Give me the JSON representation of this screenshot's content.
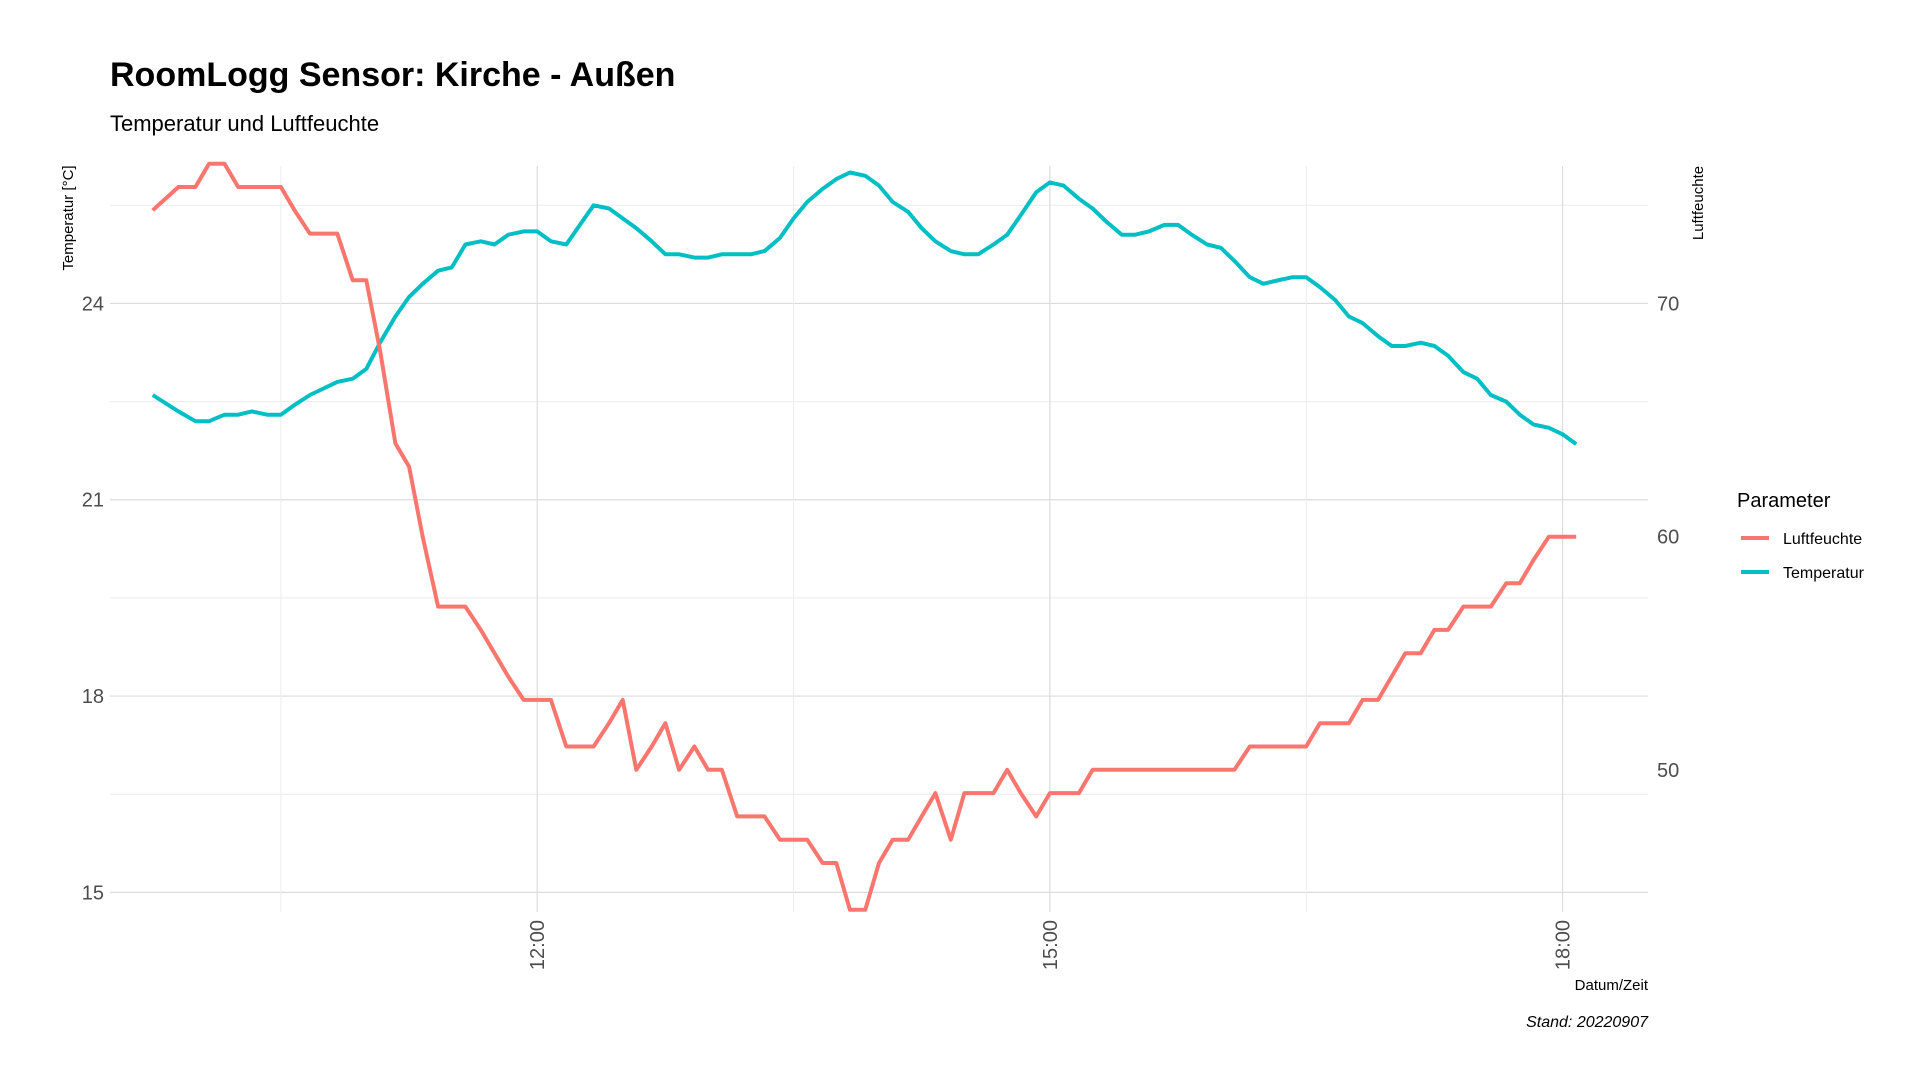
{
  "chart_data": {
    "type": "line",
    "title": "RoomLogg Sensor: Kirche - Außen",
    "subtitle": "Temperatur und Luftfeuchte",
    "xlabel": "Datum/Zeit",
    "ylabel_left": "Temperatur [°C]",
    "ylabel_right": "Luftfeuchte",
    "caption": "Stand: 20220907",
    "x_unit": "hours",
    "x_range": [
      9.5,
      18.5
    ],
    "x_ticks": [
      12,
      15,
      18
    ],
    "x_tick_labels": [
      "12:00",
      "15:00",
      "18:00"
    ],
    "ylim_left": [
      14.7,
      26.1
    ],
    "yticks_left": [
      15,
      18,
      21,
      24
    ],
    "ylim_right": [
      43.9,
      75.9
    ],
    "yticks_right": [
      50,
      60,
      70
    ],
    "grid": true,
    "legend": {
      "title": "Parameter",
      "position": "right",
      "entries": [
        "Luftfeuchte",
        "Temperatur"
      ]
    },
    "colors": {
      "Luftfeuchte": "#F8766D",
      "Temperatur": "#00BFC4"
    },
    "series": [
      {
        "name": "Temperatur",
        "axis": "left",
        "x": [
          9.75,
          9.9,
          10.0,
          10.08,
          10.17,
          10.25,
          10.33,
          10.42,
          10.5,
          10.58,
          10.67,
          10.75,
          10.83,
          10.92,
          11.0,
          11.08,
          11.17,
          11.25,
          11.33,
          11.42,
          11.5,
          11.58,
          11.67,
          11.75,
          11.83,
          11.92,
          12.0,
          12.08,
          12.17,
          12.25,
          12.33,
          12.42,
          12.5,
          12.58,
          12.67,
          12.75,
          12.83,
          12.92,
          13.0,
          13.08,
          13.17,
          13.25,
          13.33,
          13.42,
          13.5,
          13.58,
          13.67,
          13.75,
          13.83,
          13.92,
          14.0,
          14.08,
          14.17,
          14.25,
          14.33,
          14.42,
          14.5,
          14.58,
          14.67,
          14.75,
          14.83,
          14.92,
          15.0,
          15.08,
          15.17,
          15.25,
          15.33,
          15.42,
          15.5,
          15.58,
          15.67,
          15.75,
          15.83,
          15.92,
          16.0,
          16.08,
          16.17,
          16.25,
          16.33,
          16.42,
          16.5,
          16.58,
          16.67,
          16.75,
          16.83,
          16.92,
          17.0,
          17.08,
          17.17,
          17.25,
          17.33,
          17.42,
          17.5,
          17.58,
          17.67,
          17.75,
          17.83,
          17.92,
          18.0,
          18.08
        ],
        "values": [
          22.6,
          22.35,
          22.2,
          22.2,
          22.3,
          22.3,
          22.35,
          22.3,
          22.3,
          22.45,
          22.6,
          22.7,
          22.8,
          22.85,
          23.0,
          23.4,
          23.8,
          24.1,
          24.3,
          24.5,
          24.55,
          24.9,
          24.95,
          24.9,
          25.05,
          25.1,
          25.1,
          24.95,
          24.9,
          25.2,
          25.5,
          25.45,
          25.3,
          25.15,
          24.95,
          24.75,
          24.75,
          24.7,
          24.7,
          24.75,
          24.75,
          24.75,
          24.8,
          25.0,
          25.3,
          25.55,
          25.75,
          25.9,
          26.0,
          25.95,
          25.8,
          25.55,
          25.4,
          25.15,
          24.95,
          24.8,
          24.75,
          24.75,
          24.9,
          25.05,
          25.35,
          25.7,
          25.85,
          25.8,
          25.6,
          25.45,
          25.25,
          25.05,
          25.05,
          25.1,
          25.2,
          25.2,
          25.05,
          24.9,
          24.85,
          24.65,
          24.4,
          24.3,
          24.35,
          24.4,
          24.4,
          24.25,
          24.05,
          23.8,
          23.7,
          23.5,
          23.35,
          23.35,
          23.4,
          23.35,
          23.2,
          22.95,
          22.85,
          22.6,
          22.5,
          22.3,
          22.15,
          22.1,
          22.0,
          21.85
        ]
      },
      {
        "name": "Luftfeuchte",
        "axis": "right",
        "x": [
          9.75,
          9.9,
          10.0,
          10.08,
          10.17,
          10.25,
          10.33,
          10.42,
          10.5,
          10.58,
          10.67,
          10.75,
          10.83,
          10.92,
          11.0,
          11.08,
          11.17,
          11.25,
          11.33,
          11.42,
          11.5,
          11.58,
          11.67,
          11.75,
          11.83,
          11.92,
          12.0,
          12.08,
          12.17,
          12.25,
          12.33,
          12.42,
          12.5,
          12.58,
          12.67,
          12.75,
          12.83,
          12.92,
          13.0,
          13.08,
          13.17,
          13.25,
          13.33,
          13.42,
          13.5,
          13.58,
          13.67,
          13.75,
          13.83,
          13.92,
          14.0,
          14.08,
          14.17,
          14.25,
          14.33,
          14.42,
          14.5,
          14.58,
          14.67,
          14.75,
          14.83,
          14.92,
          15.0,
          15.08,
          15.17,
          15.25,
          15.33,
          15.42,
          15.5,
          15.58,
          15.67,
          15.75,
          15.83,
          15.92,
          16.0,
          16.08,
          16.17,
          16.25,
          16.33,
          16.42,
          16.5,
          16.58,
          16.67,
          16.75,
          16.83,
          16.92,
          17.0,
          17.08,
          17.17,
          17.25,
          17.33,
          17.42,
          17.5,
          17.58,
          17.67,
          17.75,
          17.83,
          17.92,
          18.0,
          18.08
        ],
        "values": [
          74.0,
          75.0,
          75.0,
          76.0,
          76.0,
          75.0,
          75.0,
          75.0,
          75.0,
          74.0,
          73.0,
          73.0,
          73.0,
          71.0,
          71.0,
          68.0,
          64.0,
          63.0,
          60.0,
          57.0,
          57.0,
          57.0,
          56.0,
          55.0,
          54.0,
          53.0,
          53.0,
          53.0,
          51.0,
          51.0,
          51.0,
          52.0,
          53.0,
          50.0,
          51.0,
          52.0,
          50.0,
          51.0,
          50.0,
          50.0,
          48.0,
          48.0,
          48.0,
          47.0,
          47.0,
          47.0,
          46.0,
          46.0,
          44.0,
          44.0,
          46.0,
          47.0,
          47.0,
          48.0,
          49.0,
          47.0,
          49.0,
          49.0,
          49.0,
          50.0,
          49.0,
          48.0,
          49.0,
          49.0,
          49.0,
          50.0,
          50.0,
          50.0,
          50.0,
          50.0,
          50.0,
          50.0,
          50.0,
          50.0,
          50.0,
          50.0,
          51.0,
          51.0,
          51.0,
          51.0,
          51.0,
          52.0,
          52.0,
          52.0,
          53.0,
          53.0,
          54.0,
          55.0,
          55.0,
          56.0,
          56.0,
          57.0,
          57.0,
          57.0,
          58.0,
          58.0,
          59.0,
          60.0,
          60.0,
          60.0
        ]
      }
    ]
  }
}
